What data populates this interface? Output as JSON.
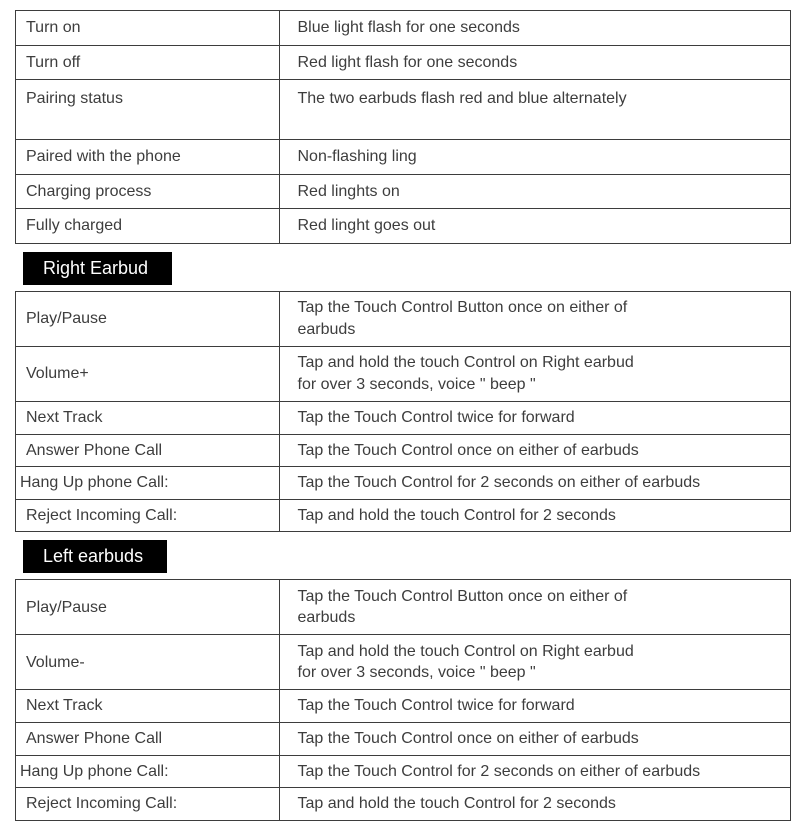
{
  "colors": {
    "text": "#3d3d3d",
    "border": "#3d3d3d",
    "header_bg": "#000000",
    "header_text": "#ffffff",
    "page_bg": "#ffffff"
  },
  "font": {
    "family": "Arial",
    "size_body": 16,
    "size_header": 18
  },
  "layout": {
    "left_col_pct": 34,
    "right_col_pct": 66
  },
  "status_table": {
    "rows": [
      {
        "label": "Turn on",
        "desc": "Blue light flash for one seconds"
      },
      {
        "label": "Turn off",
        "desc": "Red light flash for one seconds"
      },
      {
        "label": "Pairing status",
        "desc": "The two earbuds flash red and blue alternately",
        "tall": true
      },
      {
        "label": "Paired with the phone",
        "desc": "Non-flashing ling"
      },
      {
        "label": "Charging process",
        "desc": "Red linghts on"
      },
      {
        "label": "Fully charged",
        "desc": "Red linght goes out"
      }
    ]
  },
  "right_earbud": {
    "header": "Right Earbud",
    "rows": [
      {
        "label": "Play/Pause",
        "desc": "Tap the Touch Control Button once on either of\n earbuds",
        "taller": true
      },
      {
        "label": "Volume+",
        "desc": "Tap and hold the touch Control on Right earbud\nfor over 3 seconds, voice \" beep \"",
        "taller": true
      },
      {
        "label": "Next Track",
        "desc": "Tap the Touch Control twice for forward"
      },
      {
        "label": "Answer Phone Call",
        "desc": "Tap the Touch Control once on either of earbuds"
      },
      {
        "label": "Hang Up phone Call:",
        "desc": "Tap the Touch Control for 2 seconds on either of earbuds",
        "unindent": true
      },
      {
        "label": "Reject Incoming Call:",
        "desc": "Tap and hold the touch Control for 2 seconds"
      }
    ]
  },
  "left_earbuds": {
    "header": "Left earbuds",
    "rows": [
      {
        "label": "Play/Pause",
        "desc": "Tap the Touch Control Button once on either of\n earbuds",
        "taller": true
      },
      {
        "label": "Volume-",
        "desc": "Tap and hold the touch Control on Right earbud\nfor over 3 seconds, voice \" beep \"",
        "taller": true
      },
      {
        "label": "Next Track",
        "desc": "Tap the Touch Control twice for forward"
      },
      {
        "label": "Answer Phone Call",
        "desc": "Tap the Touch Control once on either of earbuds"
      },
      {
        "label": "Hang Up phone Call:",
        "desc": "Tap the Touch Control for 2 seconds on either of earbuds",
        "unindent": true
      },
      {
        "label": "Reject Incoming Call:",
        "desc": "Tap and hold the touch Control for 2 seconds"
      }
    ]
  }
}
